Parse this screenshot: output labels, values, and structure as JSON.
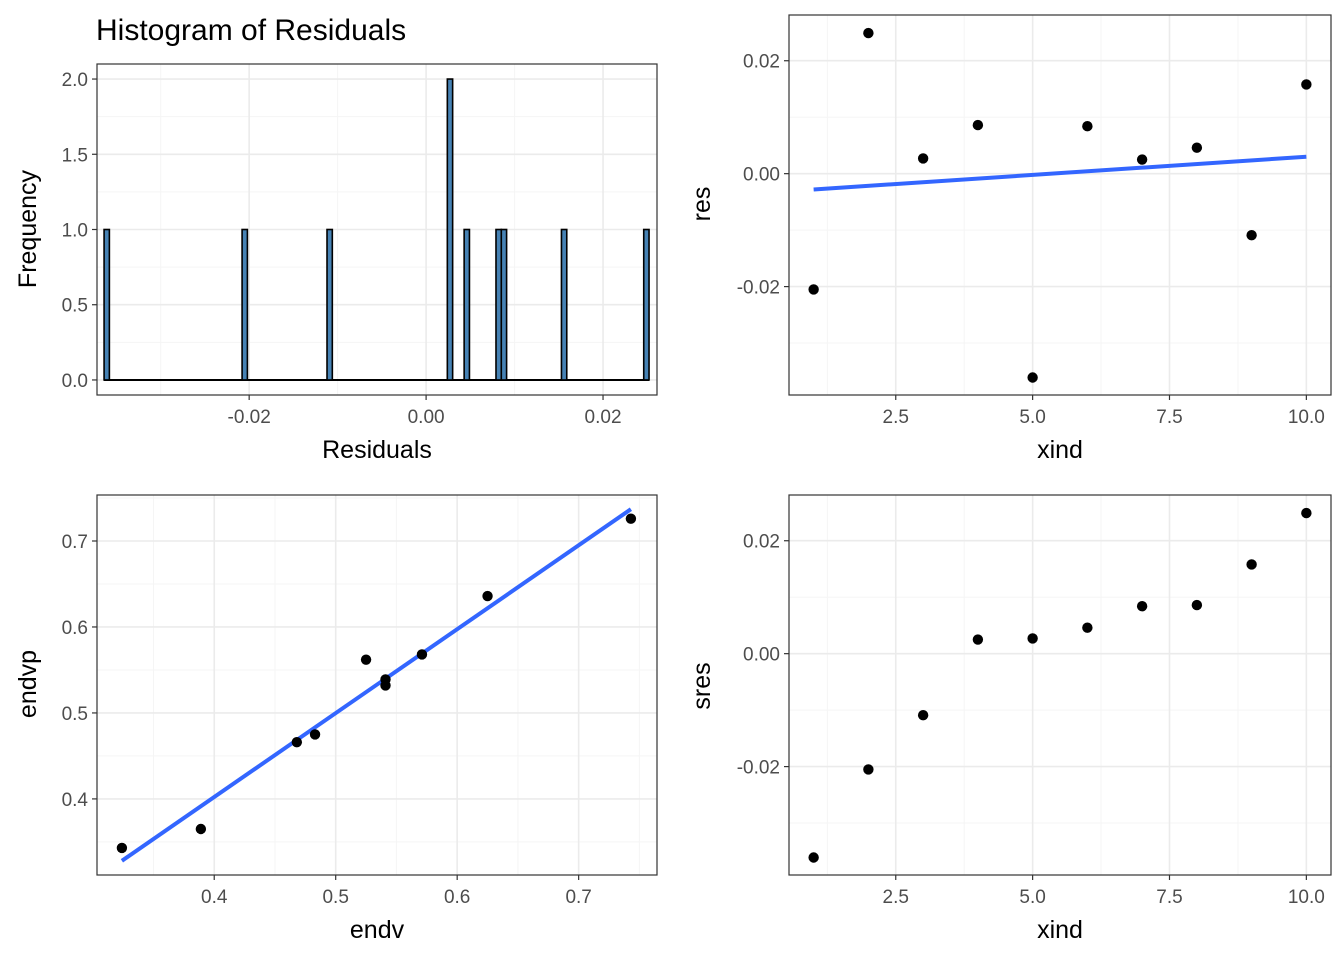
{
  "colors": {
    "panel_border": "#333333",
    "grid_major": "#ebebeb",
    "grid_minor": "#f5f5f5",
    "point": "#000000",
    "smooth_line": "#3366ff",
    "hist_fill": "#4682b4",
    "hist_outline": "#000000"
  },
  "chart_data": [
    {
      "id": "hist",
      "type": "bar",
      "title": "Histogram of Residuals",
      "xlabel": "Residuals",
      "ylabel": "Frequency",
      "xlim": [
        -0.0372,
        0.0261
      ],
      "ylim": [
        -0.1,
        2.1
      ],
      "xticks": [
        -0.02,
        0.0,
        0.02
      ],
      "xtick_labels": [
        "-0.02",
        "0.00",
        "0.02"
      ],
      "yticks": [
        0.0,
        0.5,
        1.0,
        1.5,
        2.0
      ],
      "ytick_labels": [
        "0.0",
        "0.5",
        "1.0",
        "1.5",
        "2.0"
      ],
      "grid": true,
      "bin_width": 0.0006,
      "bins": [
        {
          "x": -0.0361,
          "count": 1
        },
        {
          "x": -0.0205,
          "count": 1
        },
        {
          "x": -0.0109,
          "count": 1
        },
        {
          "x": 0.0027,
          "count": 2
        },
        {
          "x": 0.0046,
          "count": 1
        },
        {
          "x": 0.0082,
          "count": 1
        },
        {
          "x": 0.0088,
          "count": 1
        },
        {
          "x": 0.0156,
          "count": 1
        },
        {
          "x": 0.0249,
          "count": 1
        }
      ]
    },
    {
      "id": "res",
      "type": "scatter",
      "title": "",
      "xlabel": "xind",
      "ylabel": "res",
      "xlim": [
        0.55,
        10.45
      ],
      "ylim": [
        -0.0392,
        0.0281
      ],
      "xticks": [
        2.5,
        5.0,
        7.5,
        10.0
      ],
      "xtick_labels": [
        "2.5",
        "5.0",
        "7.5",
        "10.0"
      ],
      "yticks": [
        -0.02,
        0.0,
        0.02
      ],
      "ytick_labels": [
        "-0.02",
        "0.00",
        "0.02"
      ],
      "grid": true,
      "x": [
        1,
        2,
        3,
        4,
        5,
        6,
        7,
        8,
        9,
        10
      ],
      "y": [
        -0.0205,
        0.0249,
        0.0027,
        0.0086,
        -0.0361,
        0.0084,
        0.0025,
        0.0046,
        -0.0109,
        0.0158
      ],
      "fit_line": {
        "x": [
          1,
          10
        ],
        "y": [
          -0.0028,
          0.003
        ]
      }
    },
    {
      "id": "endv",
      "type": "scatter",
      "title": "",
      "xlabel": "endv",
      "ylabel": "endvp",
      "xlim": [
        0.3035,
        0.7645
      ],
      "ylim": [
        0.3115,
        0.7535
      ],
      "xticks": [
        0.4,
        0.5,
        0.6,
        0.7
      ],
      "xtick_labels": [
        "0.4",
        "0.5",
        "0.6",
        "0.7"
      ],
      "yticks": [
        0.4,
        0.5,
        0.6,
        0.7
      ],
      "ytick_labels": [
        "0.4",
        "0.5",
        "0.6",
        "0.7"
      ],
      "grid": true,
      "x": [
        0.324,
        0.389,
        0.468,
        0.483,
        0.525,
        0.541,
        0.541,
        0.571,
        0.625,
        0.743
      ],
      "y": [
        0.343,
        0.365,
        0.466,
        0.475,
        0.562,
        0.539,
        0.532,
        0.568,
        0.636,
        0.726
      ],
      "fit_line": {
        "x": [
          0.324,
          0.743
        ],
        "y": [
          0.328,
          0.737
        ]
      }
    },
    {
      "id": "sres",
      "type": "scatter",
      "title": "",
      "xlabel": "xind",
      "ylabel": "sres",
      "xlim": [
        0.55,
        10.45
      ],
      "ylim": [
        -0.0392,
        0.0281
      ],
      "xticks": [
        2.5,
        5.0,
        7.5,
        10.0
      ],
      "xtick_labels": [
        "2.5",
        "5.0",
        "7.5",
        "10.0"
      ],
      "yticks": [
        -0.02,
        0.0,
        0.02
      ],
      "ytick_labels": [
        "-0.02",
        "0.00",
        "0.02"
      ],
      "grid": true,
      "x": [
        1,
        2,
        3,
        4,
        5,
        6,
        7,
        8,
        9,
        10
      ],
      "y": [
        -0.0361,
        -0.0205,
        -0.0109,
        0.0025,
        0.0027,
        0.0046,
        0.0084,
        0.0086,
        0.0158,
        0.0249
      ]
    }
  ]
}
